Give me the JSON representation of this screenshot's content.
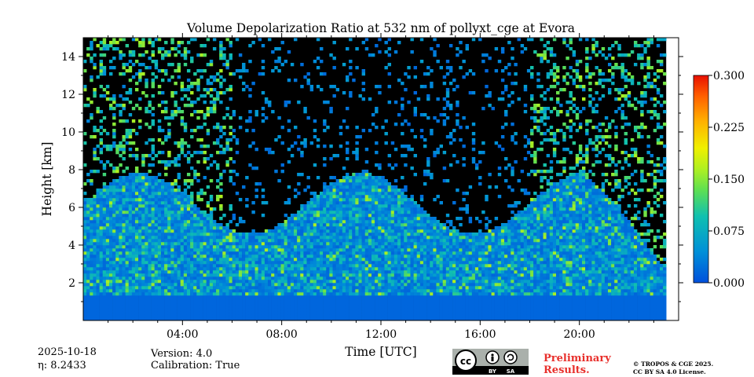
{
  "chart_data": {
    "type": "heatmap",
    "title": "Volume Depolarization Ratio at 532 nm of pollyxt_cge at Evora",
    "xlabel": "Time [UTC]",
    "ylabel": "Height [km]",
    "xlim": [
      0,
      24
    ],
    "ylim": [
      0,
      15
    ],
    "x_ticks": [
      4,
      8,
      12,
      16,
      20
    ],
    "x_tick_labels": [
      "04:00",
      "08:00",
      "12:00",
      "16:00",
      "20:00"
    ],
    "y_ticks": [
      2,
      4,
      6,
      8,
      10,
      12,
      14
    ],
    "y_tick_labels": [
      "2",
      "4",
      "6",
      "8",
      "10",
      "12",
      "14"
    ],
    "colorbar": {
      "min": 0.0,
      "max": 0.3,
      "ticks": [
        0.0,
        0.075,
        0.15,
        0.225,
        0.3
      ],
      "tick_labels": [
        "0.000",
        "0.075",
        "0.150",
        "0.225",
        "0.300"
      ],
      "colormap": "jet"
    },
    "data_end_time": 23.5,
    "background_color": "#000000",
    "low_layer_color": "#0066dd"
  },
  "footer": {
    "date": "2025-10-18",
    "eta": "η: 8.2433",
    "version": "Version: 4.0",
    "calibration": "Calibration: True",
    "preliminary_line1": "Preliminary",
    "preliminary_line2": "Results.",
    "copyright_line1": "© TROPOS & CGE 2025.",
    "copyright_line2": "CC BY SA 4.0 License.",
    "license_badge": {
      "main": "cc",
      "left": "BY",
      "right": "SA"
    }
  }
}
